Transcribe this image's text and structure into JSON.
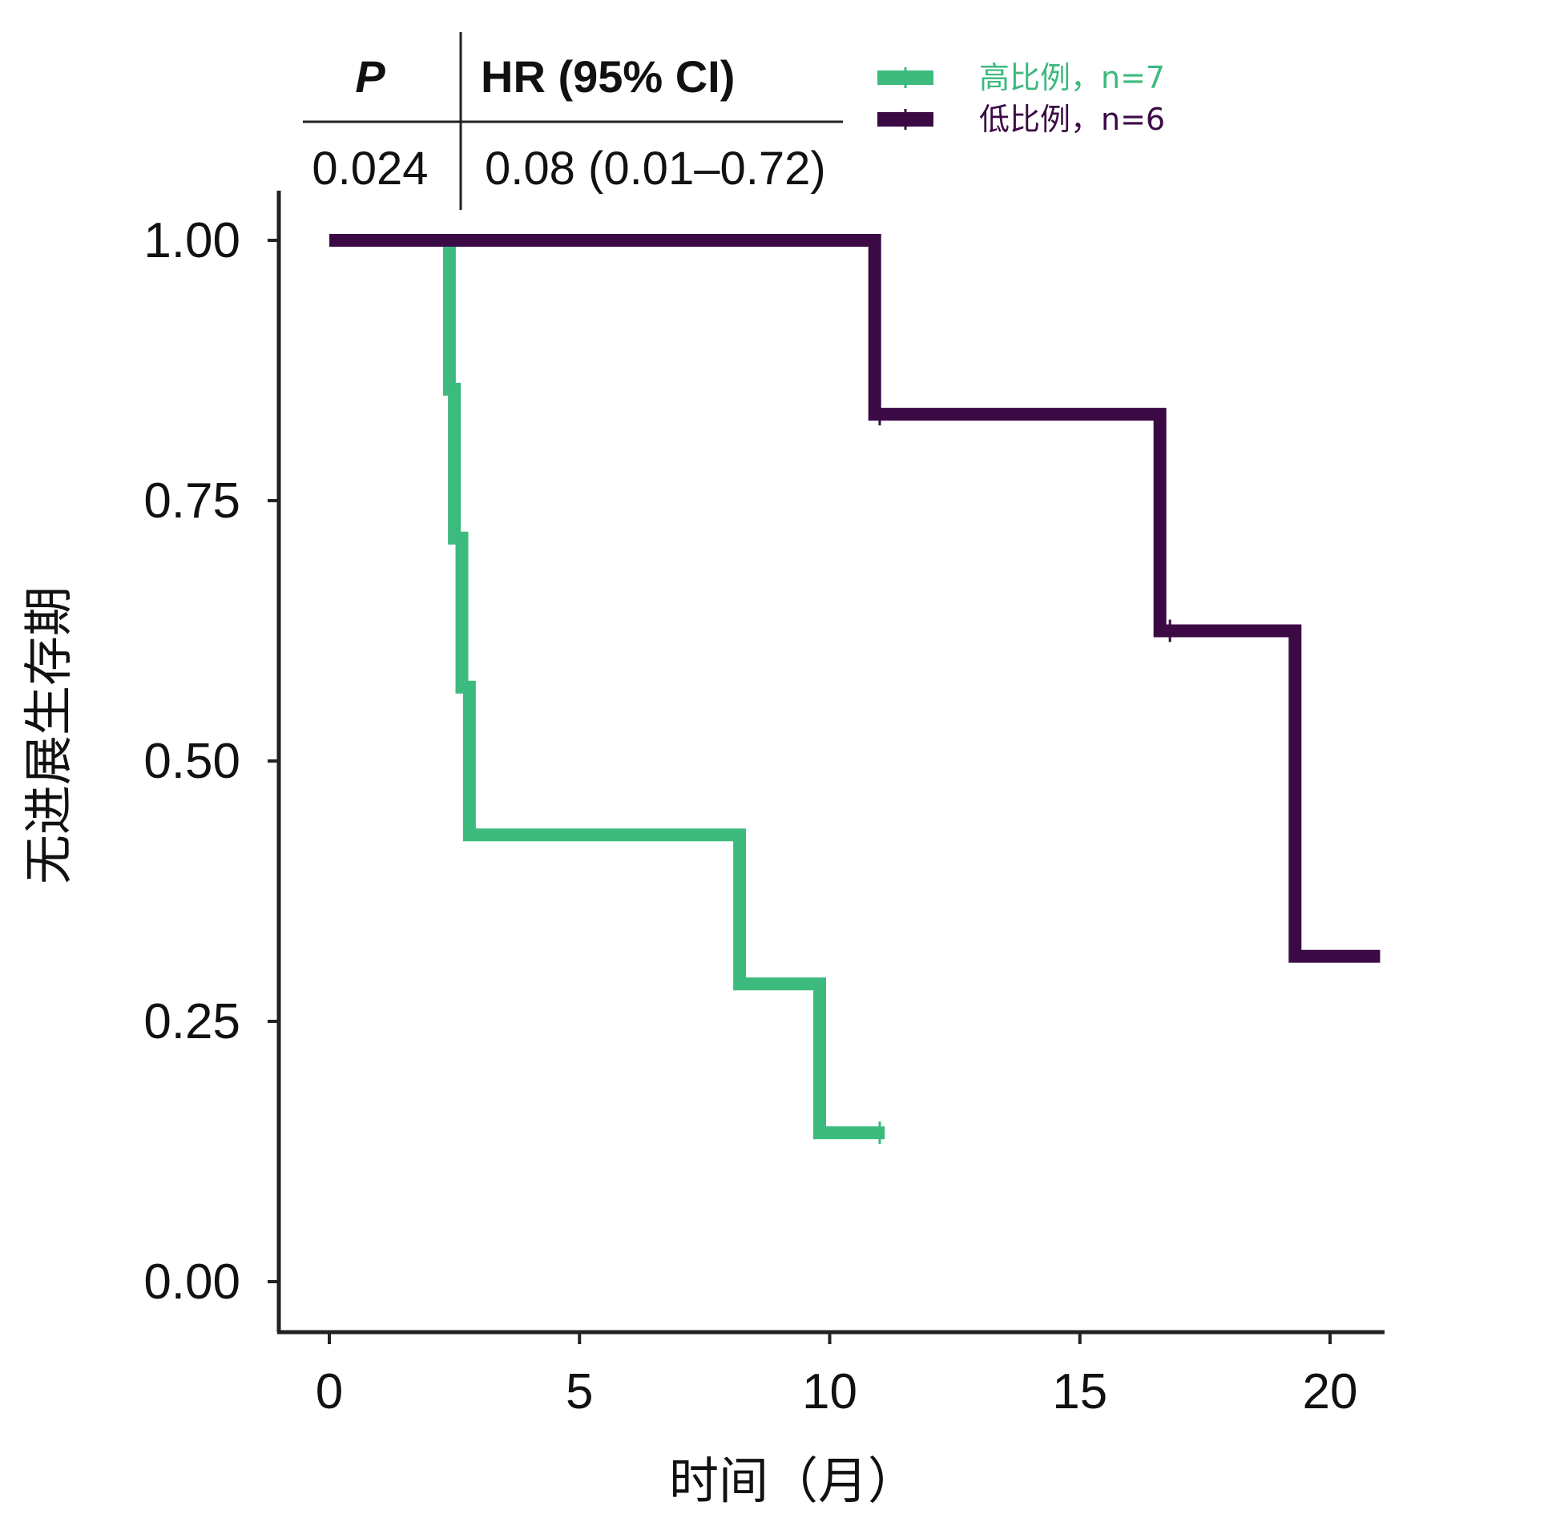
{
  "chart_data": {
    "type": "line",
    "subtype": "kaplan-meier step",
    "title": "",
    "xlabel": "时间（月）",
    "ylabel": "无进展生存期",
    "xlim": [
      -1,
      21
    ],
    "ylim": [
      -0.05,
      1.1
    ],
    "xticks": [
      0,
      5,
      10,
      15,
      20
    ],
    "yticks": [
      0.0,
      0.25,
      0.5,
      0.75,
      1.0
    ],
    "ytick_labels": [
      "0.00",
      "0.25",
      "0.50",
      "0.75",
      "1.00"
    ],
    "xtick_labels": [
      "0",
      "5",
      "10",
      "15",
      "20"
    ],
    "grid": false,
    "legend_position": "top-right",
    "stats_table": {
      "headers": [
        "P",
        "HR (95% CI)"
      ],
      "values": [
        "0.024",
        "0.08 (0.01–0.72)"
      ]
    },
    "series": [
      {
        "name": "高比例，n=7",
        "color": "#3dba7e",
        "steps": [
          {
            "x": 0,
            "y": 1.0
          },
          {
            "x": 2.4,
            "y": 0.857
          },
          {
            "x": 2.5,
            "y": 0.714
          },
          {
            "x": 2.65,
            "y": 0.571
          },
          {
            "x": 2.8,
            "y": 0.429
          },
          {
            "x": 8.2,
            "y": 0.286
          },
          {
            "x": 9.8,
            "y": 0.143
          }
        ],
        "end_x": 11.1,
        "censor_x": [
          11.0
        ]
      },
      {
        "name": "低比例，n=6",
        "color": "#3b0a45",
        "steps": [
          {
            "x": 0,
            "y": 1.0
          },
          {
            "x": 10.9,
            "y": 0.833
          },
          {
            "x": 16.6,
            "y": 0.625
          },
          {
            "x": 19.3,
            "y": 0.3125
          }
        ],
        "end_x": 21,
        "censor_x": [
          11.0,
          16.8
        ]
      }
    ]
  }
}
